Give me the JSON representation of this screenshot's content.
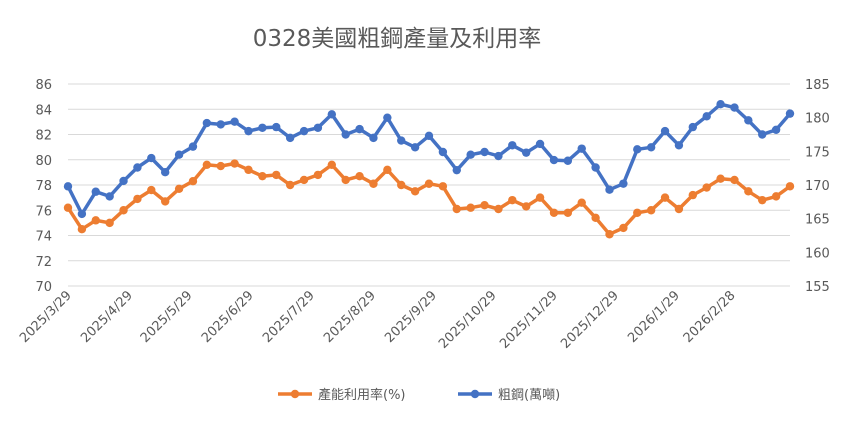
{
  "chart_data": {
    "type": "line",
    "title": "0328美國粗鋼產量及利用率",
    "x_axis": {
      "tick_labels": [
        "2025/3/29",
        "2025/4/29",
        "2025/5/29",
        "2025/6/29",
        "2025/7/29",
        "2025/8/29",
        "2025/9/29",
        "2025/10/29",
        "2025/11/29",
        "2025/12/29",
        "2026/1/29",
        "2026/2/28"
      ]
    },
    "y_left": {
      "min": 70,
      "max": 86,
      "step": 2,
      "ticks": [
        "70",
        "72",
        "74",
        "76",
        "78",
        "80",
        "82",
        "84",
        "86"
      ]
    },
    "y_right": {
      "min": 155,
      "max": 185,
      "step": 5,
      "ticks": [
        "155",
        "160",
        "165",
        "170",
        "175",
        "180",
        "185"
      ]
    },
    "grid": true,
    "legend_position": "bottom",
    "series": [
      {
        "name": "產能利用率(%)",
        "axis": "left",
        "color": "#ED7D31",
        "values": [
          76.2,
          74.5,
          75.2,
          75.0,
          76.0,
          76.9,
          77.6,
          76.7,
          77.7,
          78.3,
          79.6,
          79.5,
          79.7,
          79.2,
          78.7,
          78.8,
          78.0,
          78.4,
          78.8,
          79.6,
          78.4,
          78.7,
          78.1,
          79.2,
          78.0,
          77.5,
          78.1,
          77.9,
          76.1,
          76.2,
          76.4,
          76.1,
          76.8,
          76.3,
          77.0,
          75.8,
          75.8,
          76.6,
          75.4,
          74.1,
          74.6,
          75.8,
          76.0,
          77.0,
          76.1,
          77.2,
          77.8,
          78.5,
          78.4,
          77.5,
          76.8,
          77.1,
          77.9
        ]
      },
      {
        "name": "粗鋼(萬噸)",
        "axis": "right",
        "color": "#4472C4",
        "values": [
          169.8,
          165.7,
          169.0,
          168.3,
          170.6,
          172.6,
          174.0,
          171.9,
          174.5,
          175.7,
          179.2,
          179.0,
          179.4,
          178.0,
          178.5,
          178.6,
          177.0,
          178.0,
          178.5,
          180.5,
          177.5,
          178.3,
          177.0,
          180.0,
          176.6,
          175.6,
          177.3,
          174.9,
          172.2,
          174.5,
          174.9,
          174.3,
          175.9,
          174.8,
          176.1,
          173.7,
          173.6,
          175.4,
          172.6,
          169.3,
          170.2,
          175.3,
          175.6,
          178.0,
          175.9,
          178.6,
          180.2,
          182.0,
          181.5,
          179.6,
          177.5,
          178.2,
          180.6
        ]
      }
    ]
  }
}
